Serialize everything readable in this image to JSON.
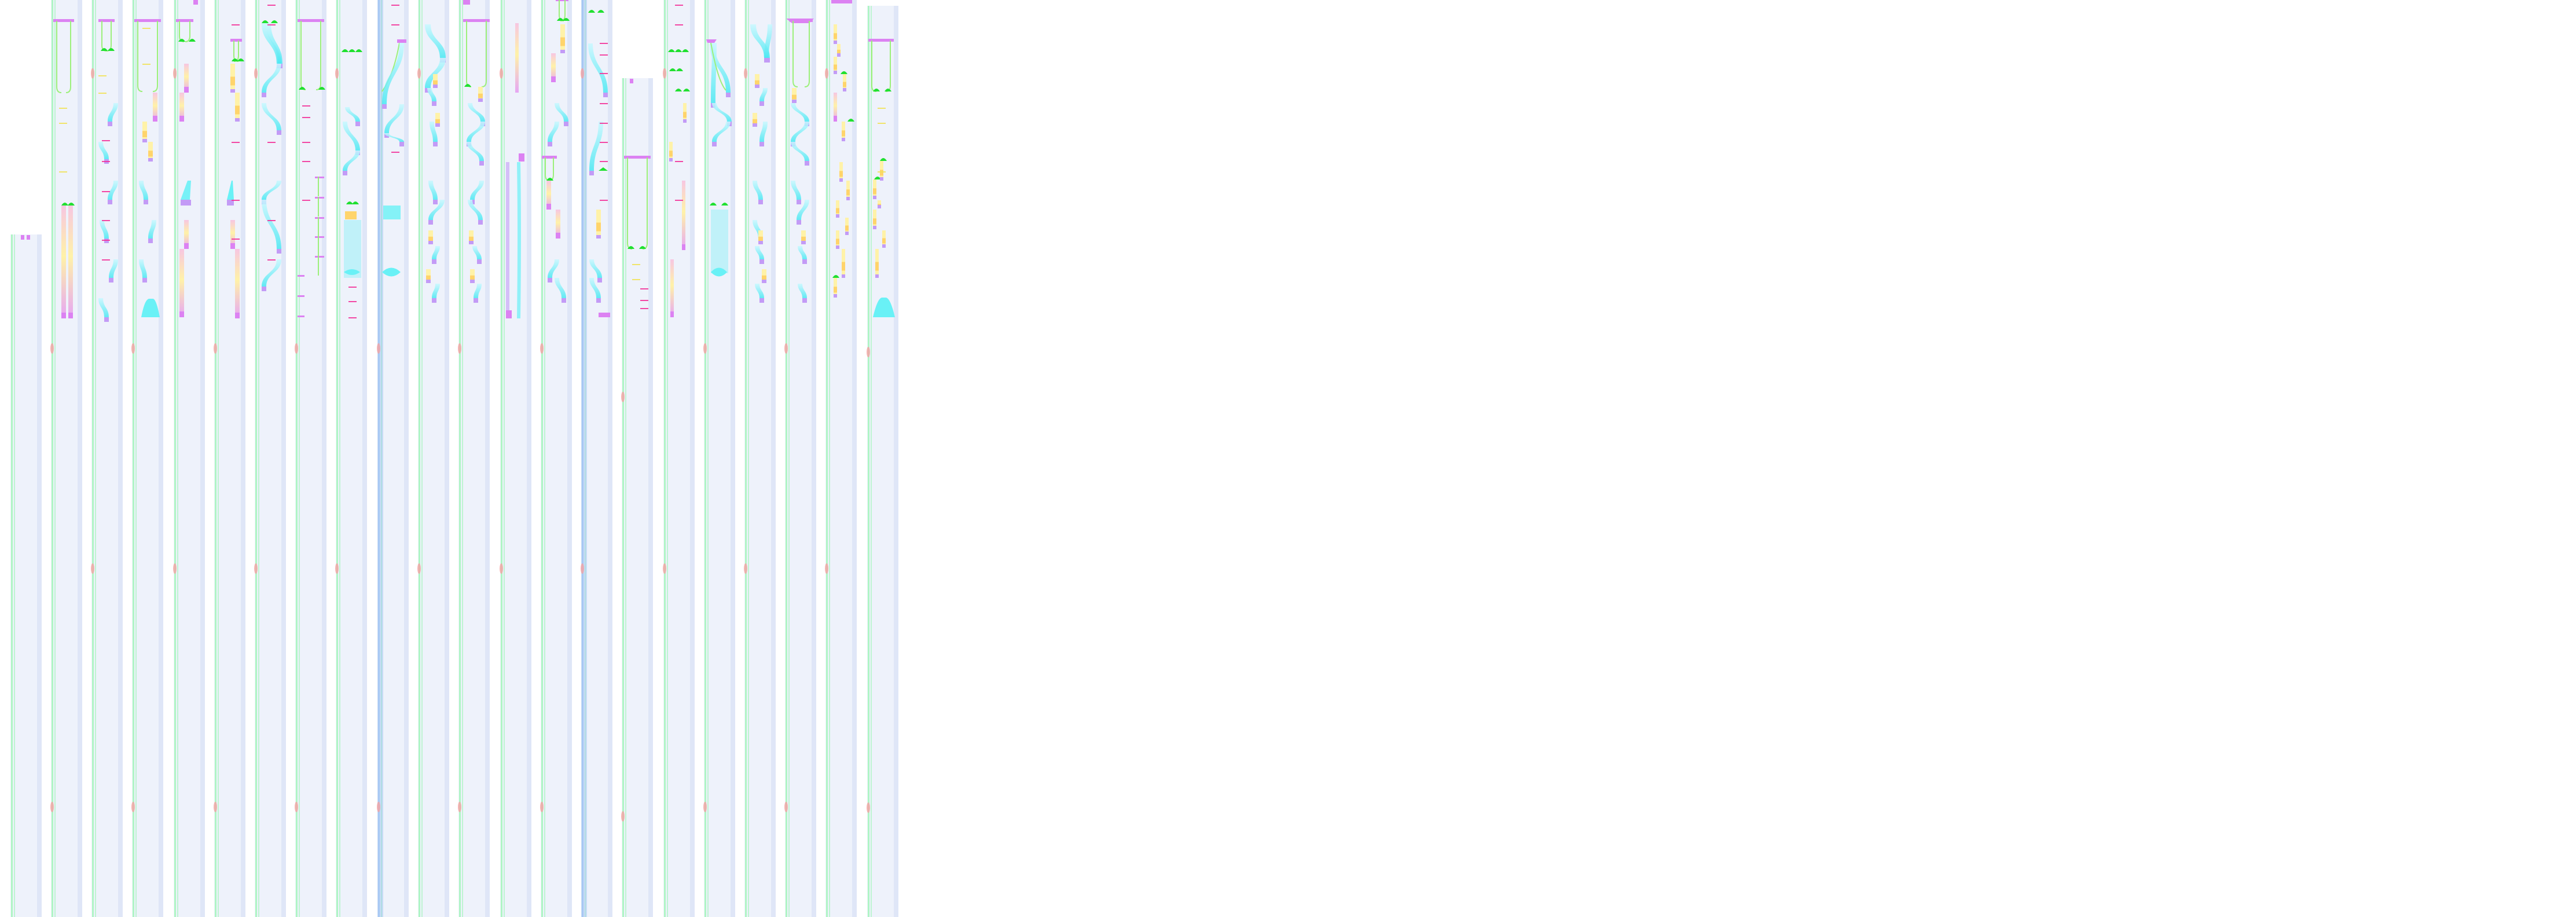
{
  "palette": {
    "lane_bg": "#eef2fb",
    "lane_edge": "#dfe6f7",
    "rail_left": "#9ff5b8",
    "rail_blue": "#9fc3f2",
    "connector": "#9cf07a",
    "cyan": "#69f1f6",
    "magenta": "#dc82f2",
    "violet": "#c39bf6",
    "yellow": "#fff2a8",
    "orange": "#ffd46b",
    "pink": "#f7c6e2",
    "red_label": "#f2349a",
    "yellow_label": "#f0e25a",
    "green_node": "#20e030",
    "red_blob": "#f4a3a3"
  }
}
